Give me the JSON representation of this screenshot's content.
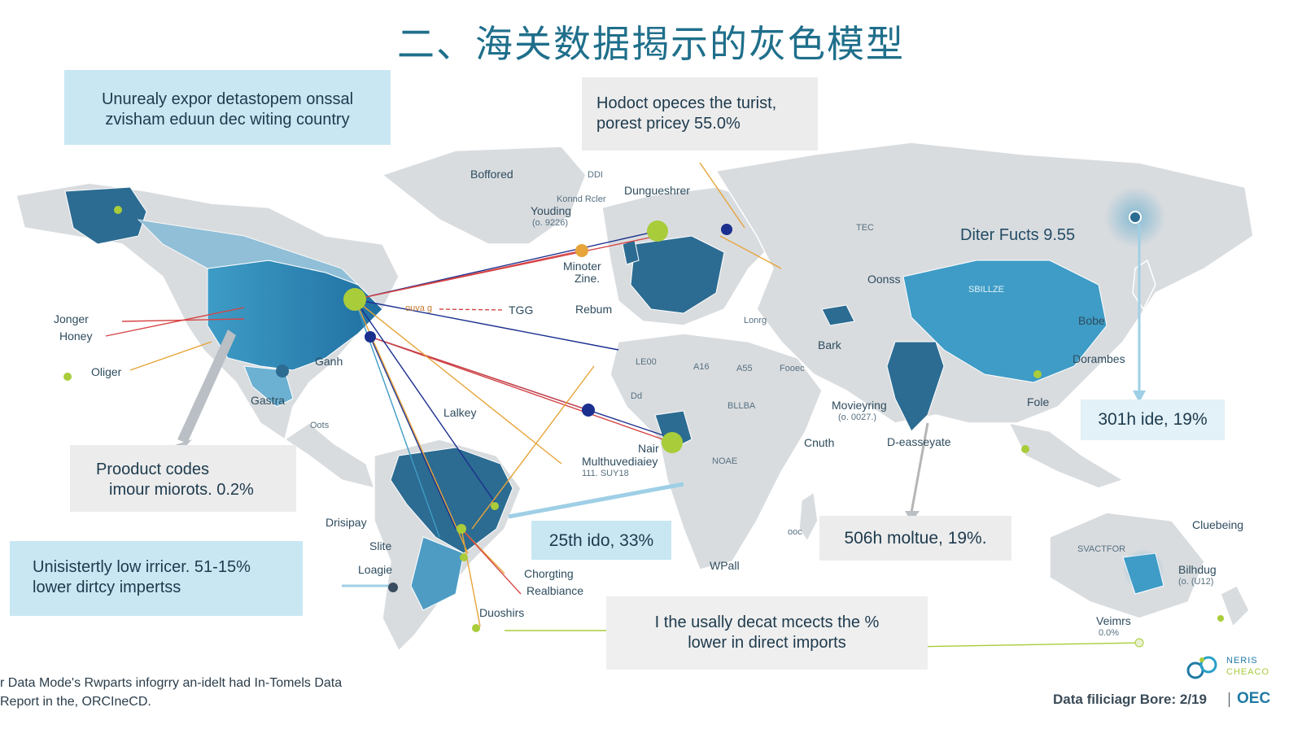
{
  "title": "二、海关数据揭示的灰色模型",
  "callouts": {
    "top_left": [
      "Unurealy expor detastopem onssal",
      "zvisham eduun dec witing country"
    ],
    "top_center": [
      "Hodoct opeces the turist,",
      "porest pricey 55.0%"
    ],
    "product_codes": [
      "Prooduct codes",
      "imour miorots. 0.2%"
    ],
    "low_price": [
      "Unisistertly low irricer. 51-15%",
      "lower dirtcy impertss"
    ],
    "africa": "25th ido, 33%",
    "india": "506h moltue, 19%.",
    "east_asia": "301h ide, 19%",
    "bottom_center": [
      "I the usally decat mcects the %",
      "lower in direct imports"
    ],
    "china_label": "Diter Fucts 9.55"
  },
  "map_labels": [
    {
      "text": "Boffored",
      "size": "s"
    },
    {
      "text": "DDI",
      "size": "xs"
    },
    {
      "text": "Dungueshrer",
      "size": "s"
    },
    {
      "text": "Konnd Rcler",
      "size": "xs"
    },
    {
      "text": "Youding",
      "size": "s"
    },
    {
      "text": "(o. 9226)",
      "size": "xs"
    },
    {
      "text": "Minoter",
      "size": "s"
    },
    {
      "text": "Zine.",
      "size": "s"
    },
    {
      "text": "Rebum",
      "size": "s"
    },
    {
      "text": "TGG",
      "size": "s"
    },
    {
      "text": "TEC",
      "size": "xs"
    },
    {
      "text": "Oonss",
      "size": "s"
    },
    {
      "text": "Lonrg",
      "size": "xs"
    },
    {
      "text": "Bark",
      "size": "s"
    },
    {
      "text": "LE00",
      "size": "xs"
    },
    {
      "text": "A16",
      "size": "xs"
    },
    {
      "text": "A55",
      "size": "xs"
    },
    {
      "text": "Fooec",
      "size": "xs"
    },
    {
      "text": "Dd",
      "size": "xs"
    },
    {
      "text": "BLLBA",
      "size": "xs"
    },
    {
      "text": "Movieyring",
      "size": "s"
    },
    {
      "text": "(o. 0027.)",
      "size": "xs"
    },
    {
      "text": "Cnuth",
      "size": "s"
    },
    {
      "text": "D-easseyate",
      "size": "s"
    },
    {
      "text": "Fole",
      "size": "s"
    },
    {
      "text": "Bobe",
      "size": "s"
    },
    {
      "text": "Dorambes",
      "size": "s"
    },
    {
      "text": "Jonger",
      "size": "s"
    },
    {
      "text": "Honey",
      "size": "s"
    },
    {
      "text": "Oliger",
      "size": "s"
    },
    {
      "text": "Gastra",
      "size": "s"
    },
    {
      "text": "Ganh",
      "size": "s"
    },
    {
      "text": "Oots",
      "size": "xs"
    },
    {
      "text": "Lalkey",
      "size": "s"
    },
    {
      "text": "Nair",
      "size": "s"
    },
    {
      "text": "Multhuvediaiey",
      "size": "s"
    },
    {
      "text": "111. SUY18",
      "size": "xs"
    },
    {
      "text": "NOAE",
      "size": "xs"
    },
    {
      "text": "WPall",
      "size": "s"
    },
    {
      "text": "Drisipay",
      "size": "s"
    },
    {
      "text": "Slite",
      "size": "s"
    },
    {
      "text": "Loagie",
      "size": "s"
    },
    {
      "text": "Chorgting",
      "size": "s"
    },
    {
      "text": "Realbiance",
      "size": "s"
    },
    {
      "text": "Duoshirs",
      "size": "s"
    },
    {
      "text": "Cluebeing",
      "size": "s"
    },
    {
      "text": "SVACTFOR",
      "size": "xs"
    },
    {
      "text": "Bilhdug",
      "size": "s"
    },
    {
      "text": "(o. (U12)",
      "size": "xs"
    },
    {
      "text": "Veimrs",
      "size": "s"
    },
    {
      "text": "0.0%",
      "size": "xs"
    },
    {
      "text": "ouva g",
      "size": "xs"
    },
    {
      "text": "ooc",
      "size": "xs"
    },
    {
      "text": "SBILLZE",
      "size": "xs"
    }
  ],
  "footer": {
    "source": [
      "r Data Mode's Rwparts infogrry an-idelt had In-Tomels Data",
      "Report in the, ORCIneCD."
    ],
    "credit": "Data filiciagr  Bore: 2/19",
    "oec": "OEC",
    "logo_text": [
      "NERIS",
      "CHEACO"
    ]
  },
  "colors": {
    "title": "#1f6f8b",
    "land": "#d9dcdf",
    "dark_blue": "#2c6c92",
    "mid_blue": "#3e9cc6",
    "light_blue": "#c9e7f3",
    "lime": "#a9cc3a",
    "navy": "#1b2f8f",
    "red": "#d64545",
    "orange": "#e7a43a"
  }
}
